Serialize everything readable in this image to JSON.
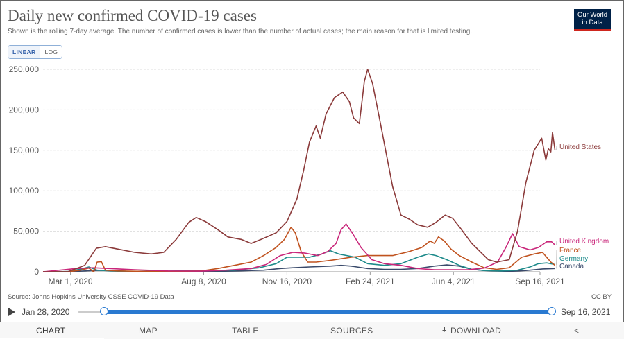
{
  "header": {
    "title": "Daily new confirmed COVID-19 cases",
    "subtitle": "Shown is the rolling 7-day average. The number of confirmed cases is lower than the number of actual cases; the main reason for that is limited testing.",
    "logo_line1": "Our World",
    "logo_line2": "in Data"
  },
  "scale_toggle": {
    "linear": "LINEAR",
    "log": "LOG",
    "selected": "LINEAR"
  },
  "footer": {
    "source": "Source: Johns Hopkins University CSSE COVID-19 Data",
    "license": "CC BY"
  },
  "timeline": {
    "start": "Jan 28, 2020",
    "end": "Sep 16, 2021"
  },
  "tabs": {
    "chart": "CHART",
    "map": "MAP",
    "table": "TABLE",
    "sources": "SOURCES",
    "download": "DOWNLOAD",
    "active": "CHART"
  },
  "icons": {
    "play": "play-icon",
    "download": "download-icon",
    "share": "share-icon"
  },
  "chart_data": {
    "type": "line",
    "title": "Daily new confirmed COVID-19 cases",
    "xlabel": "",
    "ylabel": "",
    "ylim": [
      0,
      250000
    ],
    "xlim_days": [
      0,
      597
    ],
    "yticks": [
      0,
      50000,
      100000,
      150000,
      200000,
      250000
    ],
    "ytick_labels": [
      "0",
      "50,000",
      "100,000",
      "150,000",
      "200,000",
      "250,000"
    ],
    "xticks": [
      {
        "day": 33,
        "label": "Mar 1, 2020"
      },
      {
        "day": 193,
        "label": "Aug 8, 2020"
      },
      {
        "day": 293,
        "label": "Nov 16, 2020"
      },
      {
        "day": 393,
        "label": "Feb 24, 2021"
      },
      {
        "day": 493,
        "label": "Jun 4, 2021"
      },
      {
        "day": 597,
        "label": "Sep 16, 2021"
      }
    ],
    "grid": true,
    "x_unit": "days since Jan 28, 2020",
    "series": [
      {
        "name": "United States",
        "color": "#8b3a3a",
        "points": [
          [
            0,
            0
          ],
          [
            30,
            100
          ],
          [
            50,
            8000
          ],
          [
            64,
            29000
          ],
          [
            75,
            31000
          ],
          [
            90,
            28000
          ],
          [
            110,
            24000
          ],
          [
            130,
            22000
          ],
          [
            145,
            24000
          ],
          [
            160,
            40000
          ],
          [
            175,
            61000
          ],
          [
            184,
            67000
          ],
          [
            195,
            62000
          ],
          [
            210,
            52000
          ],
          [
            222,
            43000
          ],
          [
            238,
            40000
          ],
          [
            250,
            35000
          ],
          [
            262,
            40000
          ],
          [
            280,
            48000
          ],
          [
            293,
            62000
          ],
          [
            305,
            90000
          ],
          [
            313,
            125000
          ],
          [
            320,
            160000
          ],
          [
            328,
            180000
          ],
          [
            333,
            165000
          ],
          [
            340,
            195000
          ],
          [
            350,
            215000
          ],
          [
            360,
            222000
          ],
          [
            368,
            210000
          ],
          [
            373,
            190000
          ],
          [
            380,
            183000
          ],
          [
            386,
            235000
          ],
          [
            390,
            250000
          ],
          [
            396,
            232000
          ],
          [
            405,
            185000
          ],
          [
            420,
            105000
          ],
          [
            430,
            70000
          ],
          [
            440,
            65000
          ],
          [
            450,
            58000
          ],
          [
            462,
            55000
          ],
          [
            472,
            61000
          ],
          [
            483,
            70000
          ],
          [
            492,
            66000
          ],
          [
            502,
            53000
          ],
          [
            515,
            35000
          ],
          [
            525,
            25000
          ],
          [
            535,
            15000
          ],
          [
            545,
            12000
          ],
          [
            560,
            15000
          ],
          [
            570,
            50000
          ],
          [
            580,
            110000
          ],
          [
            590,
            150000
          ],
          [
            599,
            165000
          ],
          [
            604,
            138000
          ],
          [
            607,
            152000
          ],
          [
            610,
            148000
          ],
          [
            612,
            172000
          ],
          [
            615,
            150000
          ]
        ]
      },
      {
        "name": "United Kingdom",
        "color": "#c9267a",
        "points": [
          [
            0,
            0
          ],
          [
            40,
            4000
          ],
          [
            60,
            5000
          ],
          [
            80,
            4000
          ],
          [
            110,
            2500
          ],
          [
            150,
            1000
          ],
          [
            190,
            800
          ],
          [
            220,
            2000
          ],
          [
            250,
            4000
          ],
          [
            268,
            9000
          ],
          [
            285,
            20000
          ],
          [
            300,
            24000
          ],
          [
            315,
            23000
          ],
          [
            330,
            20000
          ],
          [
            342,
            25000
          ],
          [
            352,
            35000
          ],
          [
            358,
            52000
          ],
          [
            364,
            59000
          ],
          [
            372,
            47000
          ],
          [
            382,
            30000
          ],
          [
            395,
            15000
          ],
          [
            410,
            10000
          ],
          [
            430,
            8000
          ],
          [
            450,
            4000
          ],
          [
            470,
            2500
          ],
          [
            490,
            2500
          ],
          [
            510,
            2500
          ],
          [
            530,
            4500
          ],
          [
            546,
            12000
          ],
          [
            556,
            30000
          ],
          [
            564,
            47000
          ],
          [
            572,
            31000
          ],
          [
            585,
            27000
          ],
          [
            595,
            30000
          ],
          [
            605,
            37000
          ],
          [
            611,
            37000
          ],
          [
            615,
            33000
          ]
        ]
      },
      {
        "name": "France",
        "color": "#c0521e",
        "points": [
          [
            0,
            0
          ],
          [
            30,
            0
          ],
          [
            45,
            2000
          ],
          [
            55,
            4500
          ],
          [
            61,
            0
          ],
          [
            65,
            12000
          ],
          [
            70,
            12500
          ],
          [
            75,
            2000
          ],
          [
            90,
            1000
          ],
          [
            120,
            500
          ],
          [
            160,
            500
          ],
          [
            190,
            1000
          ],
          [
            210,
            4000
          ],
          [
            230,
            8000
          ],
          [
            250,
            12000
          ],
          [
            265,
            20000
          ],
          [
            280,
            30000
          ],
          [
            290,
            40000
          ],
          [
            298,
            55000
          ],
          [
            303,
            48000
          ],
          [
            310,
            25000
          ],
          [
            318,
            12000
          ],
          [
            328,
            12000
          ],
          [
            345,
            14000
          ],
          [
            370,
            18000
          ],
          [
            390,
            20000
          ],
          [
            405,
            20000
          ],
          [
            420,
            20000
          ],
          [
            440,
            25000
          ],
          [
            455,
            30000
          ],
          [
            465,
            38000
          ],
          [
            470,
            35000
          ],
          [
            475,
            43000
          ],
          [
            482,
            38000
          ],
          [
            490,
            28000
          ],
          [
            500,
            20000
          ],
          [
            515,
            12000
          ],
          [
            530,
            5000
          ],
          [
            545,
            3000
          ],
          [
            560,
            5000
          ],
          [
            575,
            18000
          ],
          [
            590,
            22000
          ],
          [
            600,
            24000
          ],
          [
            610,
            12000
          ],
          [
            615,
            8000
          ]
        ]
      },
      {
        "name": "Germany",
        "color": "#1d8a8a",
        "points": [
          [
            0,
            0
          ],
          [
            30,
            200
          ],
          [
            48,
            4000
          ],
          [
            55,
            6000
          ],
          [
            65,
            2000
          ],
          [
            90,
            700
          ],
          [
            130,
            500
          ],
          [
            160,
            1000
          ],
          [
            200,
            1500
          ],
          [
            230,
            2000
          ],
          [
            260,
            5000
          ],
          [
            280,
            10000
          ],
          [
            293,
            18000
          ],
          [
            305,
            18000
          ],
          [
            320,
            18000
          ],
          [
            335,
            22000
          ],
          [
            345,
            26000
          ],
          [
            355,
            22000
          ],
          [
            365,
            20000
          ],
          [
            375,
            18000
          ],
          [
            390,
            10000
          ],
          [
            410,
            8000
          ],
          [
            430,
            10000
          ],
          [
            450,
            18000
          ],
          [
            463,
            22000
          ],
          [
            472,
            20000
          ],
          [
            485,
            15000
          ],
          [
            500,
            8000
          ],
          [
            515,
            3000
          ],
          [
            530,
            1500
          ],
          [
            550,
            1000
          ],
          [
            570,
            2000
          ],
          [
            585,
            6000
          ],
          [
            595,
            10000
          ],
          [
            605,
            11000
          ],
          [
            615,
            9000
          ]
        ]
      },
      {
        "name": "Canada",
        "color": "#3a4a6b",
        "points": [
          [
            0,
            0
          ],
          [
            40,
            500
          ],
          [
            60,
            1500
          ],
          [
            75,
            1800
          ],
          [
            100,
            700
          ],
          [
            130,
            400
          ],
          [
            170,
            300
          ],
          [
            210,
            500
          ],
          [
            240,
            1200
          ],
          [
            265,
            2000
          ],
          [
            285,
            4000
          ],
          [
            300,
            5000
          ],
          [
            320,
            6000
          ],
          [
            345,
            7000
          ],
          [
            358,
            8000
          ],
          [
            370,
            7000
          ],
          [
            390,
            4000
          ],
          [
            410,
            3000
          ],
          [
            430,
            3000
          ],
          [
            450,
            4000
          ],
          [
            470,
            7000
          ],
          [
            485,
            8500
          ],
          [
            500,
            7000
          ],
          [
            515,
            3000
          ],
          [
            530,
            1500
          ],
          [
            560,
            500
          ],
          [
            580,
            1500
          ],
          [
            600,
            3500
          ],
          [
            615,
            4000
          ]
        ]
      }
    ]
  }
}
